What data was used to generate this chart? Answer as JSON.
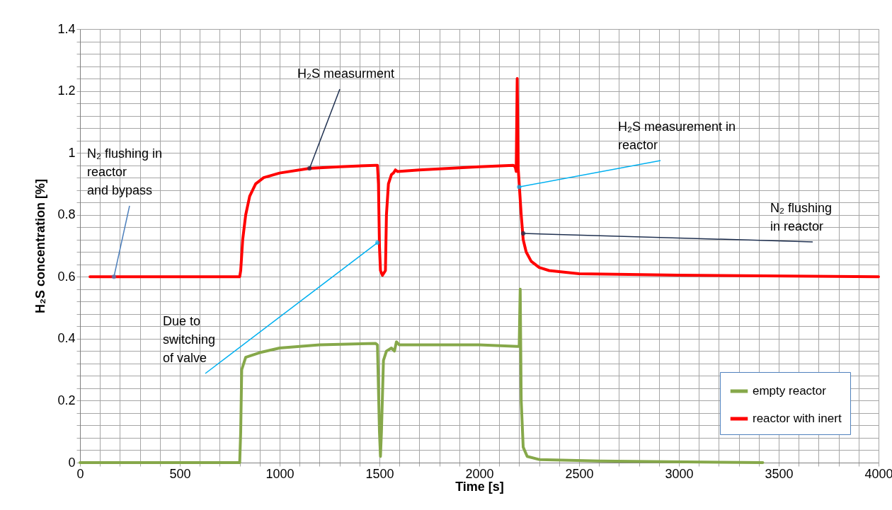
{
  "chart_data": {
    "type": "line",
    "xlabel": "Time [s]",
    "ylabel": "H₂S concentration [%]",
    "xlim": [
      0,
      4000
    ],
    "ylim": [
      0,
      1.4
    ],
    "xticks": [
      0,
      {
        "value": 100,
        "label": null
      },
      {
        "value": 200,
        "label": null
      },
      {
        "value": 300,
        "label": null
      },
      {
        "value": 400,
        "label": null
      },
      500,
      {
        "value": 600,
        "label": null
      },
      {
        "value": 700,
        "label": null
      },
      {
        "value": 800,
        "label": null
      },
      {
        "value": 900,
        "label": null
      },
      1000,
      {
        "value": 1100,
        "label": null
      },
      {
        "value": 1200,
        "label": null
      },
      {
        "value": 1300,
        "label": null
      },
      {
        "value": 1400,
        "label": null
      },
      1500,
      {
        "value": 1600,
        "label": null
      },
      {
        "value": 1700,
        "label": null
      },
      {
        "value": 1800,
        "label": null
      },
      {
        "value": 1900,
        "label": null
      },
      2000,
      {
        "value": 2100,
        "label": null
      },
      {
        "value": 2200,
        "label": null
      },
      {
        "value": 2300,
        "label": null
      },
      {
        "value": 2400,
        "label": null
      },
      2500,
      {
        "value": 2600,
        "label": null
      },
      {
        "value": 2700,
        "label": null
      },
      {
        "value": 2800,
        "label": null
      },
      {
        "value": 2900,
        "label": null
      },
      3000,
      {
        "value": 3100,
        "label": null
      },
      {
        "value": 3200,
        "label": null
      },
      {
        "value": 3300,
        "label": null
      },
      {
        "value": 3400,
        "label": null
      },
      3500,
      {
        "value": 3600,
        "label": null
      },
      {
        "value": 3700,
        "label": null
      },
      {
        "value": 3800,
        "label": null
      },
      {
        "value": 3900,
        "label": null
      },
      4000
    ],
    "yticks": [
      0,
      {
        "value": 0.04,
        "label": null
      },
      {
        "value": 0.08,
        "label": null
      },
      {
        "value": 0.12,
        "label": null
      },
      {
        "value": 0.16,
        "label": null
      },
      0.2,
      {
        "value": 0.24,
        "label": null
      },
      {
        "value": 0.28,
        "label": null
      },
      {
        "value": 0.32,
        "label": null
      },
      {
        "value": 0.36,
        "label": null
      },
      0.4,
      {
        "value": 0.44,
        "label": null
      },
      {
        "value": 0.48,
        "label": null
      },
      {
        "value": 0.52,
        "label": null
      },
      {
        "value": 0.56,
        "label": null
      },
      0.6,
      {
        "value": 0.64,
        "label": null
      },
      {
        "value": 0.68,
        "label": null
      },
      {
        "value": 0.72,
        "label": null
      },
      {
        "value": 0.76,
        "label": null
      },
      0.8,
      {
        "value": 0.84,
        "label": null
      },
      {
        "value": 0.88,
        "label": null
      },
      {
        "value": 0.92,
        "label": null
      },
      {
        "value": 0.96,
        "label": null
      },
      1,
      {
        "value": 1.04,
        "label": null
      },
      {
        "value": 1.08,
        "label": null
      },
      {
        "value": 1.12,
        "label": null
      },
      {
        "value": 1.16,
        "label": null
      },
      1.2,
      {
        "value": 1.24,
        "label": null
      },
      {
        "value": 1.28,
        "label": null
      },
      {
        "value": 1.32,
        "label": null
      },
      {
        "value": 1.36,
        "label": null
      },
      1.4
    ],
    "grid": true,
    "legend": "bottom right",
    "series": [
      {
        "name": "empty reactor",
        "color": "#86a84a",
        "x": [
          0,
          800,
          805,
          810,
          830,
          900,
          1000,
          1200,
          1480,
          1490,
          1500,
          1505,
          1510,
          1520,
          1535,
          1560,
          1575,
          1585,
          1600,
          2000,
          2190,
          2200,
          2205,
          2210,
          2220,
          2240,
          2300,
          2600,
          3420
        ],
        "values": [
          0,
          0,
          0.1,
          0.3,
          0.34,
          0.355,
          0.37,
          0.38,
          0.385,
          0.38,
          0.1,
          0.02,
          0.1,
          0.33,
          0.36,
          0.37,
          0.36,
          0.39,
          0.38,
          0.38,
          0.375,
          0.375,
          0.56,
          0.2,
          0.05,
          0.02,
          0.01,
          0.005,
          0
        ]
      },
      {
        "name": "reactor with inert",
        "color": "#ff0000",
        "x": [
          50,
          800,
          805,
          815,
          830,
          850,
          880,
          920,
          1000,
          1150,
          1300,
          1480,
          1490,
          1495,
          1500,
          1505,
          1515,
          1530,
          1535,
          1545,
          1560,
          1570,
          1580,
          1590,
          1700,
          2000,
          2170,
          2180,
          2185,
          2190,
          2195,
          2200,
          2210,
          2220,
          2235,
          2260,
          2300,
          2350,
          2500,
          3000,
          4000
        ],
        "values": [
          0.6,
          0.6,
          0.62,
          0.72,
          0.8,
          0.86,
          0.9,
          0.92,
          0.935,
          0.95,
          0.955,
          0.96,
          0.96,
          0.9,
          0.7,
          0.62,
          0.605,
          0.62,
          0.8,
          0.9,
          0.93,
          0.935,
          0.945,
          0.94,
          0.945,
          0.955,
          0.96,
          0.955,
          0.94,
          1.24,
          0.95,
          0.9,
          0.8,
          0.72,
          0.68,
          0.65,
          0.63,
          0.62,
          0.61,
          0.605,
          0.6
        ]
      }
    ],
    "annotations": [
      {
        "text": "N₂ flushing in\nreactor\nand bypass",
        "x": 170,
        "y": 0.6
      },
      {
        "text": "H₂S measurment",
        "x": 1150,
        "y": 0.95
      },
      {
        "text": "H₂S measurement in\nreactor",
        "x": 2200,
        "y": 0.89
      },
      {
        "text": "N₂ flushing\nin reactor",
        "x": 2220,
        "y": 0.74
      },
      {
        "text": "Due to\nswitching\nof valve",
        "x": 1490,
        "y": 0.71
      }
    ]
  }
}
